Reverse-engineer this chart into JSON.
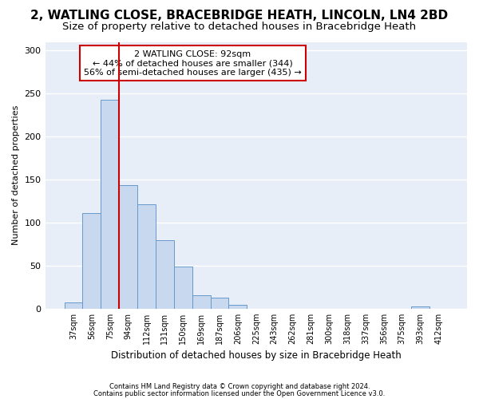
{
  "title1": "2, WATLING CLOSE, BRACEBRIDGE HEATH, LINCOLN, LN4 2BD",
  "title2": "Size of property relative to detached houses in Bracebridge Heath",
  "xlabel": "Distribution of detached houses by size in Bracebridge Heath",
  "ylabel": "Number of detached properties",
  "footnote1": "Contains HM Land Registry data © Crown copyright and database right 2024.",
  "footnote2": "Contains public sector information licensed under the Open Government Licence v3.0.",
  "categories": [
    "37sqm",
    "56sqm",
    "75sqm",
    "94sqm",
    "112sqm",
    "131sqm",
    "150sqm",
    "169sqm",
    "187sqm",
    "206sqm",
    "225sqm",
    "243sqm",
    "262sqm",
    "281sqm",
    "300sqm",
    "318sqm",
    "337sqm",
    "356sqm",
    "375sqm",
    "393sqm",
    "412sqm"
  ],
  "values": [
    7,
    111,
    243,
    144,
    121,
    80,
    49,
    16,
    13,
    4,
    0,
    0,
    0,
    0,
    0,
    0,
    0,
    0,
    0,
    3,
    0
  ],
  "bar_color": "#c8d8ee",
  "bar_edge_color": "#6699cc",
  "vline_x": 2.5,
  "vline_color": "#cc0000",
  "annotation_title": "2 WATLING CLOSE: 92sqm",
  "annotation_line1": "← 44% of detached houses are smaller (344)",
  "annotation_line2": "56% of semi-detached houses are larger (435) →",
  "annotation_box_color": "#ffffff",
  "annotation_box_edge": "#cc0000",
  "ylim": [
    0,
    310
  ],
  "bg_color": "#ffffff",
  "plot_bg_color": "#e8eef8",
  "grid_color": "#ffffff",
  "title1_fontsize": 11,
  "title2_fontsize": 9.5,
  "yticks": [
    0,
    50,
    100,
    150,
    200,
    250,
    300
  ]
}
